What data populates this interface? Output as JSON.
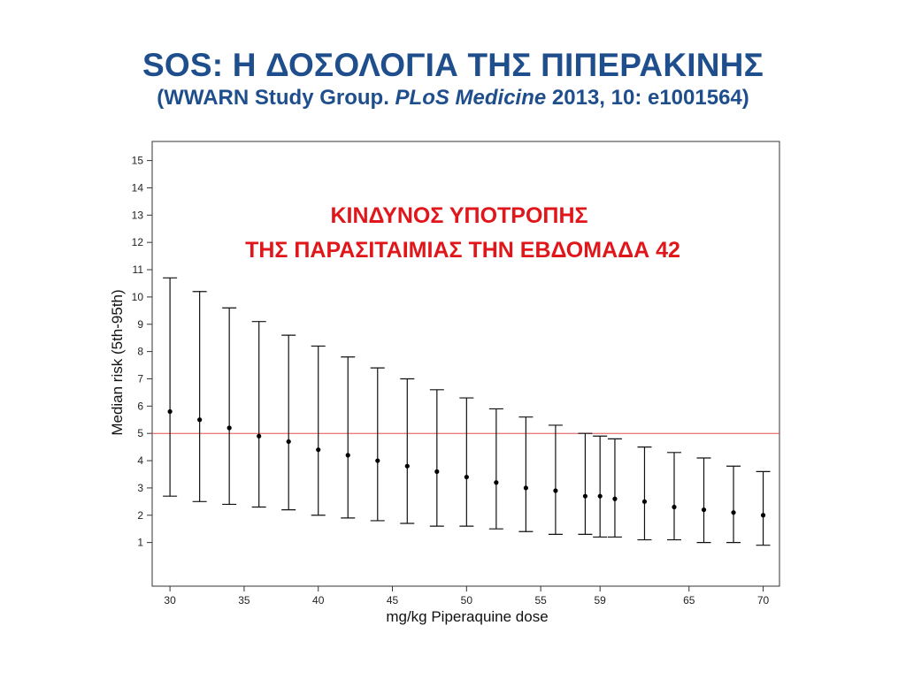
{
  "header": {
    "title": "SOS: H ΔΟΣΟΛΟΓΙΑ ΤΗΣ ΠΙΠΕΡΑΚΙΝΗΣ",
    "subtitle_pre": "(WWARN Study Group. ",
    "subtitle_journal": "PLoS Medicine",
    "subtitle_post": " 2013, 10: e1001564)"
  },
  "chart_data": {
    "type": "errorbar",
    "annotation_lines": [
      "ΚΙΝΔΥΝΟΣ ΥΠΟΤΡΟΠΗΣ",
      "ΤΗΣ ΠΑΡΑΣΙΤΑΙΜΙΑΣ ΤΗΝ ΕΒΔΟΜΑΔΑ 42"
    ],
    "annotation_color": "#e0161a",
    "xlabel": "mg/kg Piperaquine dose",
    "ylabel": "Median risk (5th-95th)",
    "xlim": [
      28.8,
      71.1
    ],
    "ylim": [
      -0.6,
      15.7
    ],
    "x_ticks": [
      30,
      35,
      40,
      45,
      50,
      55,
      59,
      65,
      70
    ],
    "y_ticks": [
      1,
      2,
      3,
      4,
      5,
      6,
      7,
      8,
      9,
      10,
      11,
      12,
      13,
      14,
      15
    ],
    "reference_line": {
      "y": 5,
      "color": "#e05050"
    },
    "grid": false,
    "points": [
      {
        "x": 30,
        "median": 5.8,
        "low": 2.7,
        "high": 10.7
      },
      {
        "x": 32,
        "median": 5.5,
        "low": 2.5,
        "high": 10.2
      },
      {
        "x": 34,
        "median": 5.2,
        "low": 2.4,
        "high": 9.6
      },
      {
        "x": 36,
        "median": 4.9,
        "low": 2.3,
        "high": 9.1
      },
      {
        "x": 38,
        "median": 4.7,
        "low": 2.2,
        "high": 8.6
      },
      {
        "x": 40,
        "median": 4.4,
        "low": 2.0,
        "high": 8.2
      },
      {
        "x": 42,
        "median": 4.2,
        "low": 1.9,
        "high": 7.8
      },
      {
        "x": 44,
        "median": 4.0,
        "low": 1.8,
        "high": 7.4
      },
      {
        "x": 46,
        "median": 3.8,
        "low": 1.7,
        "high": 7.0
      },
      {
        "x": 48,
        "median": 3.6,
        "low": 1.6,
        "high": 6.6
      },
      {
        "x": 50,
        "median": 3.4,
        "low": 1.6,
        "high": 6.3
      },
      {
        "x": 52,
        "median": 3.2,
        "low": 1.5,
        "high": 5.9
      },
      {
        "x": 54,
        "median": 3.0,
        "low": 1.4,
        "high": 5.6
      },
      {
        "x": 56,
        "median": 2.9,
        "low": 1.3,
        "high": 5.3
      },
      {
        "x": 58,
        "median": 2.7,
        "low": 1.3,
        "high": 5.0
      },
      {
        "x": 59,
        "median": 2.7,
        "low": 1.2,
        "high": 4.9
      },
      {
        "x": 60,
        "median": 2.6,
        "low": 1.2,
        "high": 4.8
      },
      {
        "x": 62,
        "median": 2.5,
        "low": 1.1,
        "high": 4.5
      },
      {
        "x": 64,
        "median": 2.3,
        "low": 1.1,
        "high": 4.3
      },
      {
        "x": 66,
        "median": 2.2,
        "low": 1.0,
        "high": 4.1
      },
      {
        "x": 68,
        "median": 2.1,
        "low": 1.0,
        "high": 3.8
      },
      {
        "x": 70,
        "median": 2.0,
        "low": 0.9,
        "high": 3.6
      }
    ]
  }
}
